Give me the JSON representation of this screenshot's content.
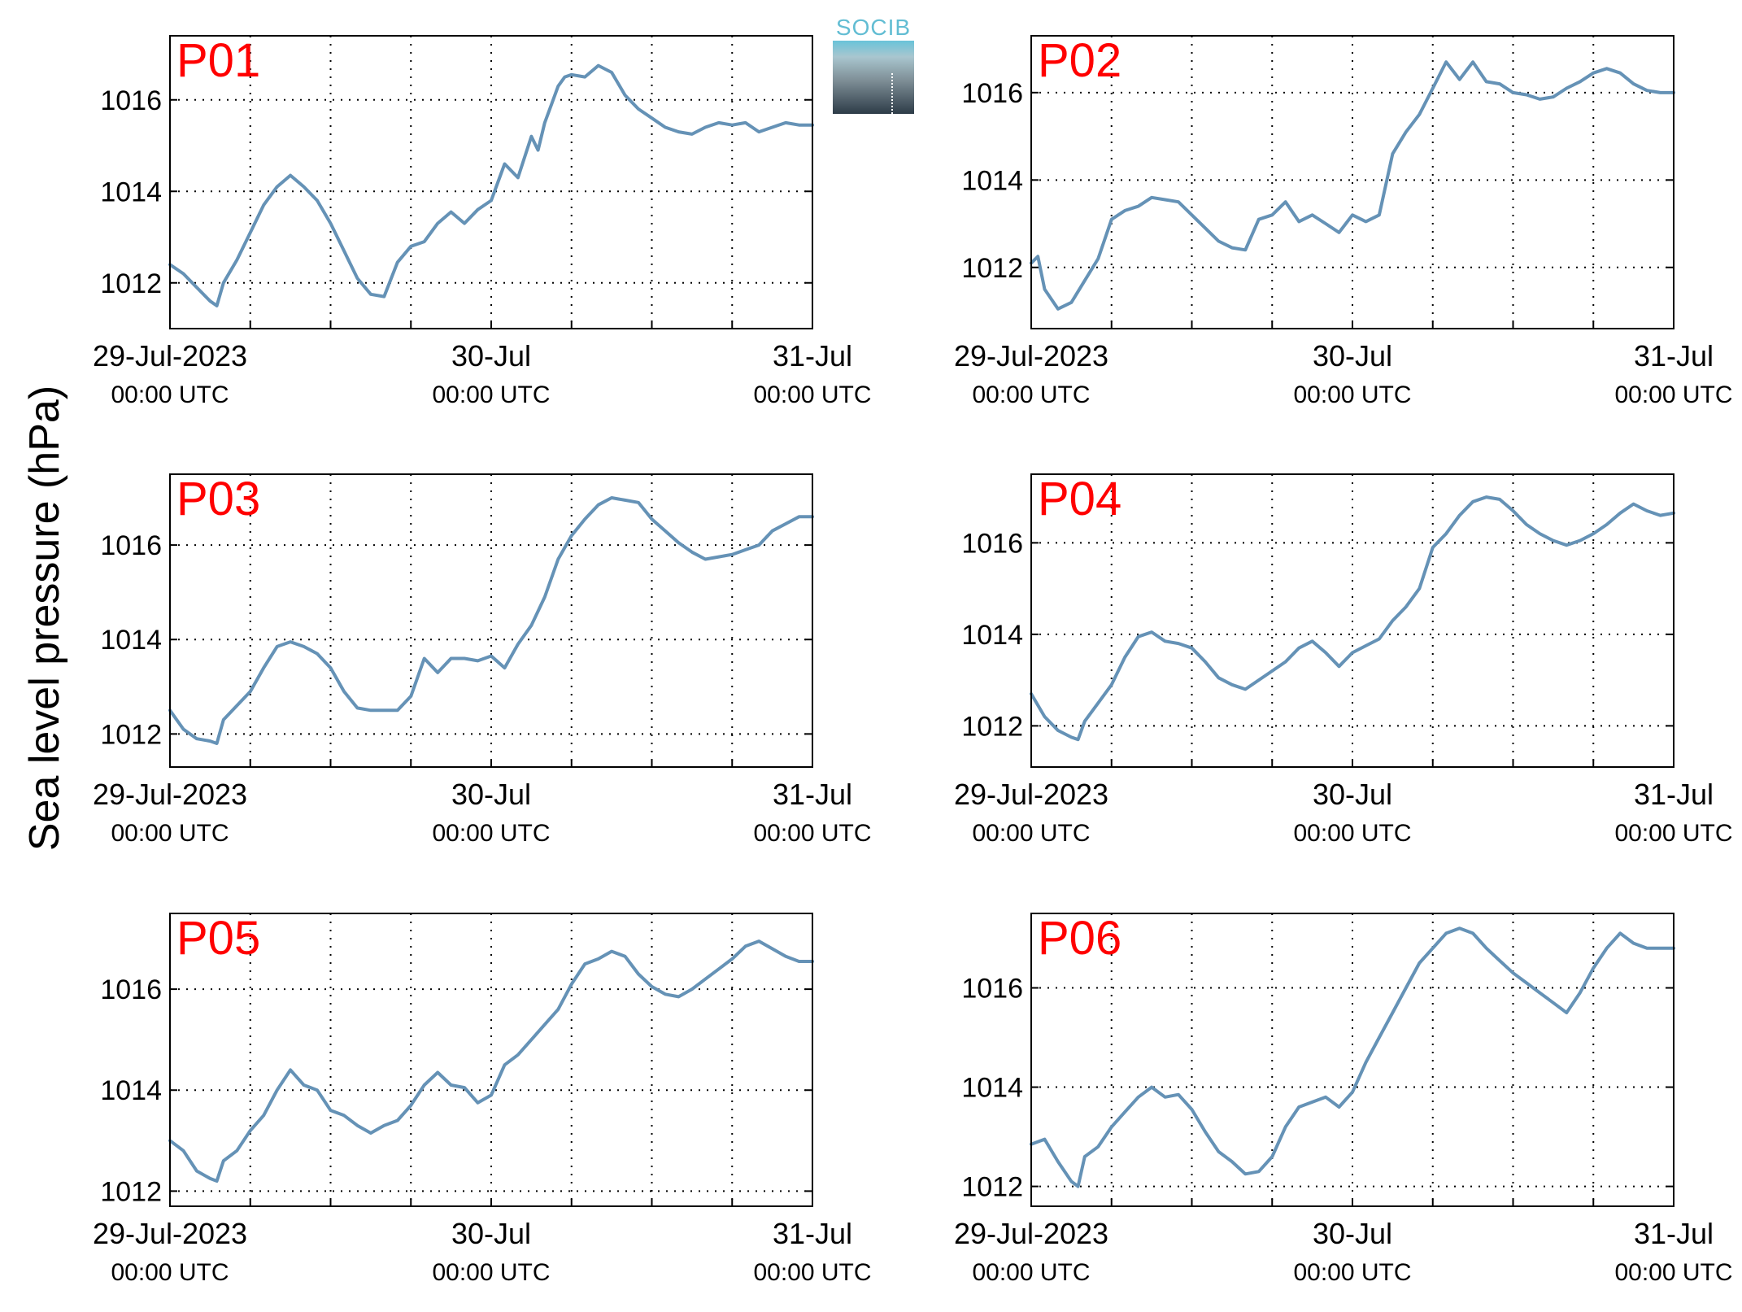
{
  "figure": {
    "ylabel": "Sea level pressure (hPa)",
    "logo_text": "SOCIB",
    "colors": {
      "line": "#6592b6",
      "panel_label": "#ff0000",
      "grid": "#000000"
    }
  },
  "chart_data": [
    {
      "type": "line",
      "title": "P01",
      "ylabel": "Sea level pressure (hPa)",
      "xlim": [
        "2023-07-29T00:00Z",
        "2023-07-31T00:00Z"
      ],
      "ylim": [
        1011.0,
        1017.4
      ],
      "xticks": [
        "2023-07-29T00:00Z",
        "2023-07-30T00:00Z",
        "2023-07-31T00:00Z"
      ],
      "xtick_labels": [
        "29-Jul-2023",
        "30-Jul",
        "31-Jul"
      ],
      "xtick_sublabels": [
        "00:00 UTC",
        "00:00 UTC",
        "00:00 UTC"
      ],
      "yticks": [
        1012,
        1014,
        1016
      ],
      "grid": true,
      "x_hours_after_2023-07-29T00:00Z": [
        0,
        1,
        2,
        3,
        3.5,
        4,
        5,
        6,
        7,
        8,
        9,
        10,
        11,
        12,
        13,
        14,
        15,
        16,
        17,
        18,
        19,
        20,
        21,
        22,
        23,
        24,
        25,
        26,
        27,
        27.5,
        28,
        28.5,
        29,
        29.5,
        30,
        31,
        32,
        33,
        34,
        35,
        36,
        37,
        38,
        39,
        40,
        41,
        42,
        43,
        44,
        45,
        46,
        47,
        48
      ],
      "values": [
        1012.4,
        1012.2,
        1011.9,
        1011.6,
        1011.5,
        1012.0,
        1012.5,
        1013.1,
        1013.7,
        1014.1,
        1014.35,
        1014.1,
        1013.8,
        1013.3,
        1012.7,
        1012.1,
        1011.75,
        1011.7,
        1012.45,
        1012.8,
        1012.9,
        1013.3,
        1013.55,
        1013.3,
        1013.6,
        1013.8,
        1014.6,
        1014.3,
        1015.2,
        1014.9,
        1015.5,
        1015.9,
        1016.3,
        1016.5,
        1016.55,
        1016.5,
        1016.75,
        1016.6,
        1016.1,
        1015.8,
        1015.6,
        1015.4,
        1015.3,
        1015.25,
        1015.4,
        1015.5,
        1015.45,
        1015.5,
        1015.3,
        1015.4,
        1015.5,
        1015.45,
        1015.45
      ]
    },
    {
      "type": "line",
      "title": "P02",
      "ylabel": "Sea level pressure (hPa)",
      "xlim": [
        "2023-07-29T00:00Z",
        "2023-07-31T00:00Z"
      ],
      "ylim": [
        1010.6,
        1017.3
      ],
      "xticks": [
        "2023-07-29T00:00Z",
        "2023-07-30T00:00Z",
        "2023-07-31T00:00Z"
      ],
      "xtick_labels": [
        "29-Jul-2023",
        "30-Jul",
        "31-Jul"
      ],
      "xtick_sublabels": [
        "00:00 UTC",
        "00:00 UTC",
        "00:00 UTC"
      ],
      "yticks": [
        1012,
        1014,
        1016
      ],
      "grid": true,
      "x_hours_after_2023-07-29T00:00Z": [
        0,
        0.5,
        1,
        2,
        3,
        4,
        5,
        6,
        7,
        8,
        9,
        10,
        11,
        12,
        13,
        14,
        15,
        16,
        17,
        18,
        19,
        20,
        21,
        22,
        23,
        24,
        25,
        26,
        27,
        28,
        29,
        30,
        31,
        32,
        33,
        34,
        35,
        36,
        37,
        38,
        39,
        40,
        41,
        42,
        43,
        44,
        45,
        46,
        47,
        48
      ],
      "values": [
        1012.1,
        1012.25,
        1011.5,
        1011.05,
        1011.2,
        1011.7,
        1012.2,
        1013.1,
        1013.3,
        1013.4,
        1013.6,
        1013.55,
        1013.5,
        1013.2,
        1012.9,
        1012.6,
        1012.45,
        1012.4,
        1013.1,
        1013.2,
        1013.5,
        1013.05,
        1013.2,
        1013.0,
        1012.8,
        1013.2,
        1013.05,
        1013.2,
        1014.6,
        1015.1,
        1015.5,
        1016.1,
        1016.7,
        1016.3,
        1016.7,
        1016.25,
        1016.2,
        1016.0,
        1015.95,
        1015.85,
        1015.9,
        1016.1,
        1016.25,
        1016.45,
        1016.55,
        1016.45,
        1016.2,
        1016.05,
        1016.0,
        1016.0
      ]
    },
    {
      "type": "line",
      "title": "P03",
      "ylabel": "Sea level pressure (hPa)",
      "xlim": [
        "2023-07-29T00:00Z",
        "2023-07-31T00:00Z"
      ],
      "ylim": [
        1011.3,
        1017.5
      ],
      "xticks": [
        "2023-07-29T00:00Z",
        "2023-07-30T00:00Z",
        "2023-07-31T00:00Z"
      ],
      "xtick_labels": [
        "29-Jul-2023",
        "30-Jul",
        "31-Jul"
      ],
      "xtick_sublabels": [
        "00:00 UTC",
        "00:00 UTC",
        "00:00 UTC"
      ],
      "yticks": [
        1012,
        1014,
        1016
      ],
      "grid": true,
      "x_hours_after_2023-07-29T00:00Z": [
        0,
        1,
        2,
        3,
        3.5,
        4,
        5,
        6,
        7,
        8,
        9,
        10,
        11,
        12,
        13,
        14,
        15,
        16,
        17,
        18,
        19,
        20,
        21,
        22,
        23,
        24,
        25,
        26,
        27,
        28,
        29,
        30,
        31,
        32,
        33,
        34,
        35,
        36,
        37,
        38,
        39,
        40,
        41,
        42,
        43,
        44,
        45,
        46,
        47,
        48
      ],
      "values": [
        1012.5,
        1012.1,
        1011.9,
        1011.85,
        1011.8,
        1012.3,
        1012.6,
        1012.9,
        1013.4,
        1013.85,
        1013.95,
        1013.85,
        1013.7,
        1013.4,
        1012.9,
        1012.55,
        1012.5,
        1012.5,
        1012.5,
        1012.8,
        1013.6,
        1013.3,
        1013.6,
        1013.6,
        1013.55,
        1013.65,
        1013.4,
        1013.9,
        1014.3,
        1014.9,
        1015.7,
        1016.2,
        1016.55,
        1016.85,
        1017.0,
        1016.95,
        1016.9,
        1016.55,
        1016.3,
        1016.05,
        1015.85,
        1015.7,
        1015.75,
        1015.8,
        1015.9,
        1016.0,
        1016.3,
        1016.45,
        1016.6,
        1016.6
      ]
    },
    {
      "type": "line",
      "title": "P04",
      "ylabel": "Sea level pressure (hPa)",
      "xlim": [
        "2023-07-29T00:00Z",
        "2023-07-31T00:00Z"
      ],
      "ylim": [
        1011.1,
        1017.5
      ],
      "xticks": [
        "2023-07-29T00:00Z",
        "2023-07-30T00:00Z",
        "2023-07-31T00:00Z"
      ],
      "xtick_labels": [
        "29-Jul-2023",
        "30-Jul",
        "31-Jul"
      ],
      "xtick_sublabels": [
        "00:00 UTC",
        "00:00 UTC",
        "00:00 UTC"
      ],
      "yticks": [
        1012,
        1014,
        1016
      ],
      "grid": true,
      "x_hours_after_2023-07-29T00:00Z": [
        0,
        1,
        2,
        3,
        3.5,
        4,
        5,
        6,
        7,
        8,
        9,
        10,
        11,
        12,
        13,
        14,
        15,
        16,
        17,
        18,
        19,
        20,
        21,
        22,
        23,
        24,
        25,
        26,
        27,
        28,
        29,
        30,
        31,
        32,
        33,
        34,
        35,
        36,
        37,
        38,
        39,
        40,
        41,
        42,
        43,
        44,
        45,
        46,
        47,
        48
      ],
      "values": [
        1012.7,
        1012.2,
        1011.9,
        1011.75,
        1011.7,
        1012.1,
        1012.5,
        1012.9,
        1013.5,
        1013.95,
        1014.05,
        1013.85,
        1013.8,
        1013.7,
        1013.4,
        1013.05,
        1012.9,
        1012.8,
        1013.0,
        1013.2,
        1013.4,
        1013.7,
        1013.85,
        1013.6,
        1013.3,
        1013.6,
        1013.75,
        1013.9,
        1014.3,
        1014.6,
        1015.0,
        1015.9,
        1016.2,
        1016.6,
        1016.9,
        1017.0,
        1016.95,
        1016.7,
        1016.4,
        1016.2,
        1016.05,
        1015.95,
        1016.05,
        1016.2,
        1016.4,
        1016.65,
        1016.85,
        1016.7,
        1016.6,
        1016.65
      ]
    },
    {
      "type": "line",
      "title": "P05",
      "ylabel": "Sea level pressure (hPa)",
      "xlim": [
        "2023-07-29T00:00Z",
        "2023-07-31T00:00Z"
      ],
      "ylim": [
        1011.7,
        1017.5
      ],
      "xticks": [
        "2023-07-29T00:00Z",
        "2023-07-30T00:00Z",
        "2023-07-31T00:00Z"
      ],
      "xtick_labels": [
        "29-Jul-2023",
        "30-Jul",
        "31-Jul"
      ],
      "xtick_sublabels": [
        "00:00 UTC",
        "00:00 UTC",
        "00:00 UTC"
      ],
      "yticks": [
        1012,
        1014,
        1016
      ],
      "grid": true,
      "x_hours_after_2023-07-29T00:00Z": [
        0,
        1,
        2,
        3,
        3.5,
        4,
        5,
        6,
        7,
        8,
        9,
        10,
        11,
        12,
        13,
        14,
        15,
        16,
        17,
        18,
        19,
        20,
        21,
        22,
        23,
        24,
        25,
        26,
        27,
        28,
        29,
        30,
        31,
        32,
        33,
        34,
        35,
        36,
        37,
        38,
        39,
        40,
        41,
        42,
        43,
        44,
        45,
        46,
        47,
        48
      ],
      "values": [
        1013.0,
        1012.8,
        1012.4,
        1012.25,
        1012.2,
        1012.6,
        1012.8,
        1013.2,
        1013.5,
        1014.0,
        1014.4,
        1014.1,
        1014.0,
        1013.6,
        1013.5,
        1013.3,
        1013.15,
        1013.3,
        1013.4,
        1013.7,
        1014.1,
        1014.35,
        1014.1,
        1014.05,
        1013.75,
        1013.9,
        1014.5,
        1014.7,
        1015.0,
        1015.3,
        1015.6,
        1016.1,
        1016.5,
        1016.6,
        1016.75,
        1016.65,
        1016.3,
        1016.05,
        1015.9,
        1015.85,
        1016.0,
        1016.2,
        1016.4,
        1016.6,
        1016.85,
        1016.95,
        1016.8,
        1016.65,
        1016.55,
        1016.55
      ]
    },
    {
      "type": "line",
      "title": "P06",
      "ylabel": "Sea level pressure (hPa)",
      "xlim": [
        "2023-07-29T00:00Z",
        "2023-07-31T00:00Z"
      ],
      "ylim": [
        1011.6,
        1017.5
      ],
      "xticks": [
        "2023-07-29T00:00Z",
        "2023-07-30T00:00Z",
        "2023-07-31T00:00Z"
      ],
      "xtick_labels": [
        "29-Jul-2023",
        "30-Jul",
        "31-Jul"
      ],
      "xtick_sublabels": [
        "00:00 UTC",
        "00:00 UTC",
        "00:00 UTC"
      ],
      "yticks": [
        1012,
        1014,
        1016
      ],
      "grid": true,
      "x_hours_after_2023-07-29T00:00Z": [
        0,
        1,
        2,
        3,
        3.5,
        4,
        5,
        6,
        7,
        8,
        9,
        10,
        11,
        12,
        13,
        14,
        15,
        16,
        17,
        18,
        19,
        20,
        21,
        22,
        23,
        24,
        25,
        26,
        27,
        28,
        29,
        30,
        31,
        32,
        33,
        34,
        35,
        36,
        37,
        38,
        39,
        40,
        41,
        42,
        43,
        44,
        45,
        46,
        47,
        48
      ],
      "values": [
        1012.85,
        1012.95,
        1012.5,
        1012.1,
        1012.0,
        1012.6,
        1012.8,
        1013.2,
        1013.5,
        1013.8,
        1014.0,
        1013.8,
        1013.85,
        1013.55,
        1013.1,
        1012.7,
        1012.5,
        1012.25,
        1012.3,
        1012.6,
        1013.2,
        1013.6,
        1013.7,
        1013.8,
        1013.6,
        1013.9,
        1014.5,
        1015.0,
        1015.5,
        1016.0,
        1016.5,
        1016.8,
        1017.1,
        1017.2,
        1017.1,
        1016.8,
        1016.55,
        1016.3,
        1016.1,
        1015.9,
        1015.7,
        1015.5,
        1015.9,
        1016.4,
        1016.8,
        1017.1,
        1016.9,
        1016.8,
        1016.8,
        1016.8
      ]
    }
  ]
}
